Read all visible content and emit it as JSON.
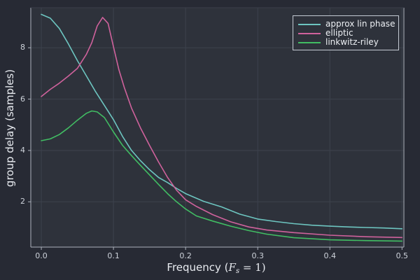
{
  "figure": {
    "bg_outer": "#272a34",
    "bg_plot": "#2e323b",
    "grid_color": "#3d424d",
    "spine_color": "#adb3bd",
    "top_border_color": "#3b3f4a",
    "tick_label_color": "#cdd2da",
    "axis_label_color": "#e8ebf0",
    "legend_border_color": "#c4cad3",
    "legend_bg_color": "#2e323b",
    "legend_text_color": "#edf0f4"
  },
  "chart_data": {
    "type": "line",
    "title": "",
    "xlabel": "Frequency (Fs = 1)",
    "xlabel_parts": {
      "prefix": "Frequency (",
      "var": "F",
      "sub": "s",
      "suffix": " = 1)"
    },
    "ylabel": "group delay (samples)",
    "grid": true,
    "legend_position": "top-right",
    "xlim": [
      -0.0146,
      0.5026
    ],
    "ylim": [
      0.236,
      9.56
    ],
    "xticks": [
      0.0,
      0.1,
      0.2,
      0.3,
      0.4,
      0.5
    ],
    "xtick_labels": [
      "0.0",
      "0.1",
      "0.2",
      "0.3",
      "0.4",
      "0.5"
    ],
    "yticks": [
      2,
      4,
      6,
      8
    ],
    "ytick_labels": [
      "2",
      "4",
      "6",
      "8"
    ],
    "series": [
      {
        "name": "approx lin phase",
        "color": "#6dc5c0",
        "x": [
          0,
          0.0125,
          0.025,
          0.0375,
          0.05,
          0.0625,
          0.075,
          0.0875,
          0.1,
          0.1125,
          0.125,
          0.1375,
          0.15,
          0.1625,
          0.175,
          0.1875,
          0.2,
          0.225,
          0.25,
          0.275,
          0.3,
          0.325,
          0.35,
          0.375,
          0.4,
          0.425,
          0.45,
          0.475,
          0.5
        ],
        "y": [
          9.3,
          9.15,
          8.75,
          8.15,
          7.5,
          6.9,
          6.3,
          5.75,
          5.2,
          4.55,
          4.0,
          3.6,
          3.25,
          2.95,
          2.75,
          2.52,
          2.32,
          2.02,
          1.8,
          1.52,
          1.33,
          1.23,
          1.15,
          1.09,
          1.05,
          1.02,
          1.0,
          0.98,
          0.95
        ]
      },
      {
        "name": "elliptic",
        "color": "#cf629c",
        "x": [
          0,
          0.0125,
          0.025,
          0.0375,
          0.05,
          0.0625,
          0.07,
          0.0775,
          0.085,
          0.0925,
          0.1,
          0.1075,
          0.115,
          0.125,
          0.1375,
          0.15,
          0.1625,
          0.175,
          0.1875,
          0.2,
          0.215,
          0.2375,
          0.2625,
          0.2875,
          0.3125,
          0.35,
          0.4,
          0.45,
          0.5
        ],
        "y": [
          6.1,
          6.38,
          6.62,
          6.9,
          7.2,
          7.75,
          8.2,
          8.85,
          9.18,
          8.95,
          8.04,
          7.15,
          6.45,
          5.65,
          4.88,
          4.2,
          3.55,
          2.95,
          2.45,
          2.08,
          1.82,
          1.5,
          1.22,
          1.02,
          0.9,
          0.8,
          0.7,
          0.64,
          0.61
        ]
      },
      {
        "name": "linkwitz-riley",
        "color": "#41bd63",
        "x": [
          0,
          0.0125,
          0.025,
          0.0375,
          0.05,
          0.0625,
          0.07,
          0.0775,
          0.0875,
          0.1,
          0.1125,
          0.125,
          0.1375,
          0.15,
          0.1625,
          0.175,
          0.1875,
          0.2,
          0.215,
          0.2375,
          0.2625,
          0.2875,
          0.3125,
          0.35,
          0.4,
          0.45,
          0.5
        ],
        "y": [
          4.38,
          4.45,
          4.62,
          4.88,
          5.18,
          5.45,
          5.54,
          5.5,
          5.28,
          4.72,
          4.2,
          3.8,
          3.42,
          3.05,
          2.68,
          2.32,
          2.0,
          1.72,
          1.45,
          1.25,
          1.05,
          0.88,
          0.74,
          0.6,
          0.52,
          0.49,
          0.47
        ]
      }
    ]
  }
}
